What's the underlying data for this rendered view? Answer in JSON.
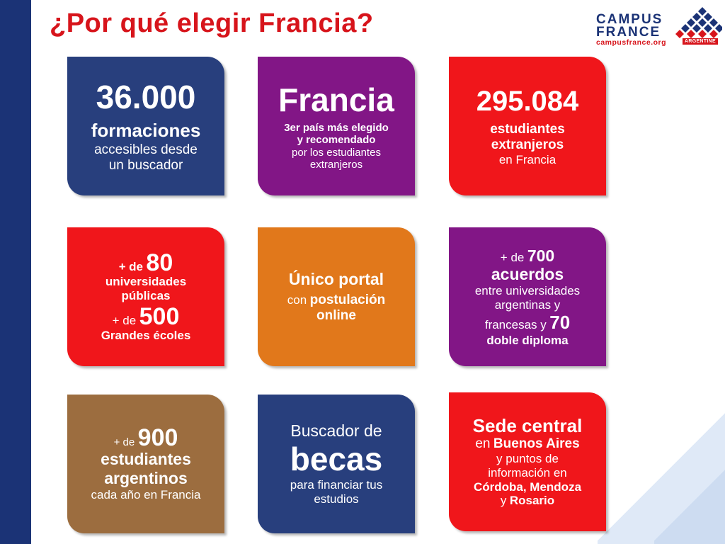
{
  "title": "¿Por qué elegir Francia?",
  "logo": {
    "line1": "CAMPUS",
    "line2": "FRANCE",
    "url": "campusfrance.org",
    "country": "ARGENTINE"
  },
  "colors": {
    "blue": "#283f7d",
    "purple": "#821686",
    "red": "#f0161b",
    "orange": "#e1781b",
    "brown": "#9c6d3f",
    "title_red": "#d7141b"
  },
  "cards": {
    "formaciones": {
      "number": "36.000",
      "label": "formaciones",
      "line1": "accesibles desde",
      "line2": "un buscador"
    },
    "francia": {
      "heading": "Francia",
      "line1": "3er país más elegido",
      "line2": "y recomendado",
      "line3": "por los estudiantes",
      "line4": "extranjeros"
    },
    "estudiantes": {
      "number": "295.084",
      "line1": "estudiantes",
      "line2": "extranjeros",
      "line3": "en Francia"
    },
    "universidades": {
      "prefix1_plus": "+",
      "prefix1_de": "de",
      "number1": "80",
      "line1": "universidades",
      "line2": "públicas",
      "prefix2_plus": "+ de",
      "number2": "500",
      "line3": "Grandes écoles"
    },
    "portal": {
      "heading": "Único portal",
      "con": "con",
      "postulacion": "postulación",
      "online": "online"
    },
    "acuerdos": {
      "prefix": "+ de",
      "number": "700",
      "label": "acuerdos",
      "line1": "entre universidades",
      "line2": "argentinas y",
      "line3": "francesas y",
      "number2": "70",
      "line4": "doble diploma"
    },
    "argentinos": {
      "prefix": "+ de",
      "number": "900",
      "line1": "estudiantes",
      "line2": "argentinos",
      "line3": "cada año en Francia"
    },
    "becas": {
      "line1": "Buscador de",
      "heading": "becas",
      "line2": "para financiar tus",
      "line3": "estudios"
    },
    "sede": {
      "heading": "Sede central",
      "en": "en",
      "city": "Buenos Aires",
      "line1": "y puntos de",
      "line2": "información en",
      "cities": "Córdoba, Mendoza",
      "y": "y",
      "last_city": "Rosario"
    }
  }
}
